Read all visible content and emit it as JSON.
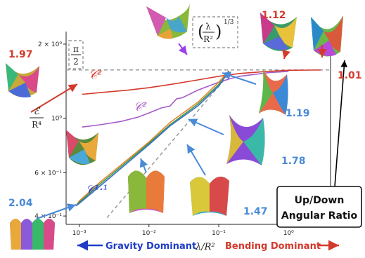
{
  "chart_data": {
    "type": "line",
    "xlabel": "λ/R²",
    "ylabel": "ℰ / R⁴",
    "xscale": "log",
    "yscale": "log",
    "xlim": [
      0.00065,
      4.0
    ],
    "ylim": [
      0.37,
      2.25
    ],
    "x_ticks": [
      {
        "value": 0.001,
        "label": "10⁻³"
      },
      {
        "value": 0.01,
        "label": "10⁻²"
      },
      {
        "value": 0.1,
        "label": "10⁻¹"
      },
      {
        "value": 1.0,
        "label": "10⁰"
      }
    ],
    "y_ticks": [
      {
        "value": 0.4,
        "label": "4 × 10⁻¹"
      },
      {
        "value": 0.6,
        "label": "6 × 10⁻¹"
      },
      {
        "value": 1.0,
        "label": "10⁰"
      },
      {
        "value": 2.0,
        "label": "2 × 10⁰"
      }
    ],
    "grid": false,
    "reference_lines": [
      {
        "label": "π/2",
        "y": 1.5708,
        "style": "dashed",
        "color": "#999999"
      },
      {
        "label": "(λ/R²)^(1/3)",
        "exponent": 0.3333,
        "style": "dashed",
        "color": "#999999"
      }
    ],
    "series": [
      {
        "name": "𝒞²",
        "color": "#d33a2c",
        "x": [
          0.0011,
          0.002,
          0.005,
          0.01,
          0.02,
          0.05,
          0.1,
          0.2,
          0.5,
          1.0,
          2.0,
          2.9
        ],
        "y": [
          1.25,
          1.27,
          1.3,
          1.33,
          1.37,
          1.43,
          1.48,
          1.52,
          1.55,
          1.565,
          1.568,
          1.57
        ]
      },
      {
        "name": "𝒞²",
        "color": "#a55cc8",
        "x": [
          0.0011,
          0.002,
          0.004,
          0.007,
          0.01,
          0.015,
          0.02,
          0.025,
          0.03,
          0.05,
          0.1,
          0.15,
          0.2,
          0.5,
          1.0
        ],
        "y": [
          0.92,
          0.94,
          0.97,
          1.01,
          1.05,
          1.1,
          1.12,
          1.2,
          1.21,
          1.3,
          1.4,
          1.45,
          1.48,
          1.53,
          1.55
        ]
      },
      {
        "name": "𝒞¹·¹",
        "color": "#e8862c",
        "x": [
          0.0009,
          0.001,
          0.002,
          0.005,
          0.01,
          0.02,
          0.05,
          0.1,
          0.14
        ],
        "y": [
          0.44,
          0.46,
          0.55,
          0.68,
          0.8,
          0.96,
          1.16,
          1.4,
          1.56
        ]
      },
      {
        "name": "",
        "color": "#3b9b4a",
        "x": [
          0.0009,
          0.001,
          0.002,
          0.005,
          0.01,
          0.02,
          0.05,
          0.1,
          0.14
        ],
        "y": [
          0.44,
          0.455,
          0.54,
          0.67,
          0.79,
          0.94,
          1.14,
          1.37,
          1.55
        ]
      },
      {
        "name": "",
        "color": "#3a6fc8",
        "x": [
          0.0009,
          0.001,
          0.002,
          0.005,
          0.01,
          0.02,
          0.05,
          0.1,
          0.14
        ],
        "y": [
          0.44,
          0.45,
          0.53,
          0.66,
          0.78,
          0.93,
          1.12,
          1.35,
          1.55
        ]
      }
    ]
  },
  "labels": {
    "energy_num": "ℰ",
    "energy_den": "R⁴",
    "pi_num": "π",
    "pi_den": "2",
    "lambda_num": "λ",
    "lambda_den": "R²",
    "lambda_exp": "1/3",
    "c2_red": "𝒞²",
    "c2_purple": "𝒞²",
    "c11": "𝒞¹·¹"
  },
  "ratios": {
    "r197": "1.97",
    "r112": "1.12",
    "r101": "1.01",
    "r119": "1.19",
    "r178": "1.78",
    "r147": "1.47",
    "r204": "2.04"
  },
  "bottom": {
    "gravity": "Gravity Dominant",
    "xlabel": "λ/R²",
    "bending": "Bending Dominant"
  },
  "legend_box": {
    "line1": "Up/Down",
    "line2": "Angular Ratio"
  },
  "colors": {
    "red": "#d33a2c",
    "blue": "#4a8ad8",
    "navy": "#1f3cc8",
    "purple": "#a55cc8"
  }
}
